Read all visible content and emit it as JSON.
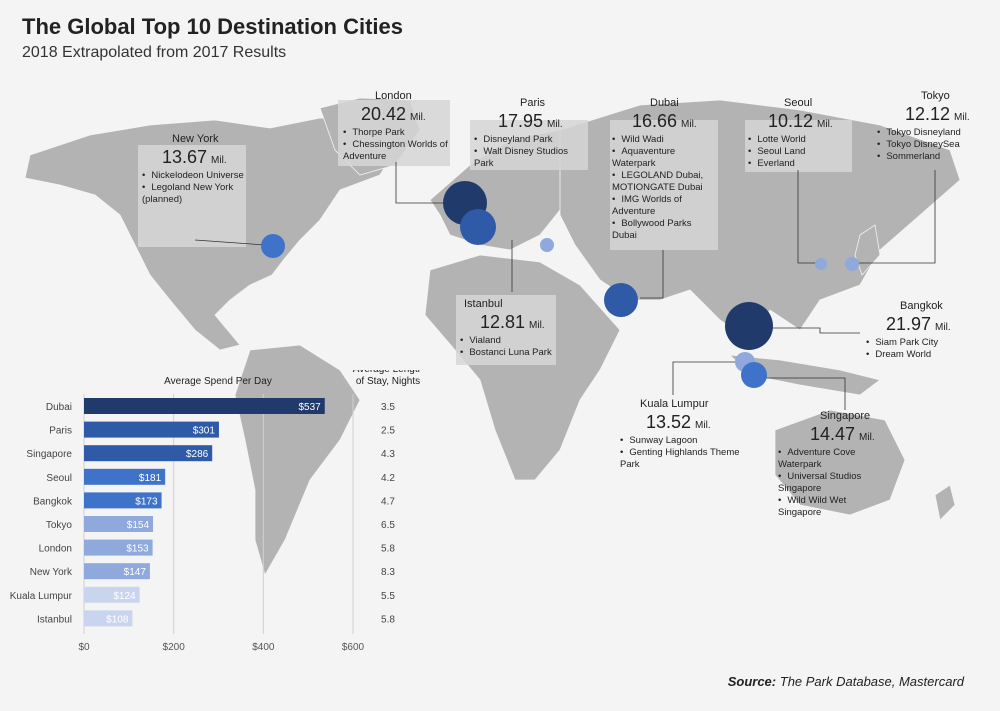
{
  "title": "The Global Top 10 Destination Cities",
  "subtitle": "2018 Extrapolated from 2017 Results",
  "source_label": "Source:",
  "source_text": "The Park Database, Mastercard",
  "unit": "Mil.",
  "colors": {
    "dark": "#1f3a6b",
    "mid": "#2f5aa8",
    "blue": "#3f73c9",
    "light": "#8fa9dc",
    "lighter": "#c9d5ee",
    "land": "#b3b3b3",
    "box": "#d6d6d6"
  },
  "cities": [
    {
      "name": "London",
      "visitors": "20.42",
      "parks": [
        "Thorpe Park",
        "Chessington Worlds of Adventure"
      ]
    },
    {
      "name": "New York",
      "visitors": "13.67",
      "parks": [
        "Nickelodeon Universe",
        "Legoland New York (planned)"
      ]
    },
    {
      "name": "Paris",
      "visitors": "17.95",
      "parks": [
        "Disneyland Park",
        "Walt Disney Studios Park"
      ]
    },
    {
      "name": "Dubai",
      "visitors": "16.66",
      "parks": [
        "Wild Wadi",
        "Aquaventure Waterpark",
        "LEGOLAND Dubai, MOTIONGATE Dubai",
        "IMG Worlds of Adventure",
        "Bollywood Parks Dubai"
      ]
    },
    {
      "name": "Seoul",
      "visitors": "10.12",
      "parks": [
        "Lotte World",
        "Seoul Land",
        "Everland"
      ]
    },
    {
      "name": "Tokyo",
      "visitors": "12.12",
      "parks": [
        "Tokyo Disneyland",
        "Tokyo DisneySea",
        "Sommerland"
      ]
    },
    {
      "name": "Istanbul",
      "visitors": "12.81",
      "parks": [
        "Vialand",
        "Bostanci Luna Park"
      ]
    },
    {
      "name": "Bangkok",
      "visitors": "21.97",
      "parks": [
        "Siam Park City",
        "Dream World"
      ]
    },
    {
      "name": "Kuala Lumpur",
      "visitors": "13.52",
      "parks": [
        "Sunway Lagoon",
        "Genting Highlands Theme Park"
      ]
    },
    {
      "name": "Singapore",
      "visitors": "14.47",
      "parks": [
        "Adventure Cove Waterpark",
        "Universal Studios Singapore",
        "Wild Wild Wet Singapore"
      ]
    }
  ],
  "chart_data": {
    "type": "bar",
    "title": "Average Spend Per Day",
    "stay_title": "Average Length of Stay, Nights",
    "categories": [
      "Dubai",
      "Paris",
      "Singapore",
      "Seoul",
      "Bangkok",
      "Tokyo",
      "London",
      "New York",
      "Kuala Lumpur",
      "Istanbul"
    ],
    "values": [
      537,
      301,
      286,
      181,
      173,
      154,
      153,
      147,
      124,
      108
    ],
    "value_labels": [
      "$537",
      "$301",
      "$286",
      "$181",
      "$173",
      "$154",
      "$153",
      "$147",
      "$124",
      "$108"
    ],
    "stay_nights": [
      "3.5",
      "2.5",
      "4.3",
      "4.2",
      "4.7",
      "6.5",
      "5.8",
      "8.3",
      "5.5",
      "5.8"
    ],
    "bar_colors": [
      "#1f3a6b",
      "#2f5aa8",
      "#2f5aa8",
      "#3f73c9",
      "#3f73c9",
      "#8fa9dc",
      "#8fa9dc",
      "#8fa9dc",
      "#c9d5ee",
      "#c9d5ee"
    ],
    "xlim": [
      0,
      600
    ],
    "xticks": [
      "$0",
      "$200",
      "$400",
      "$600"
    ],
    "xtick_values": [
      0,
      200,
      400,
      600
    ]
  }
}
